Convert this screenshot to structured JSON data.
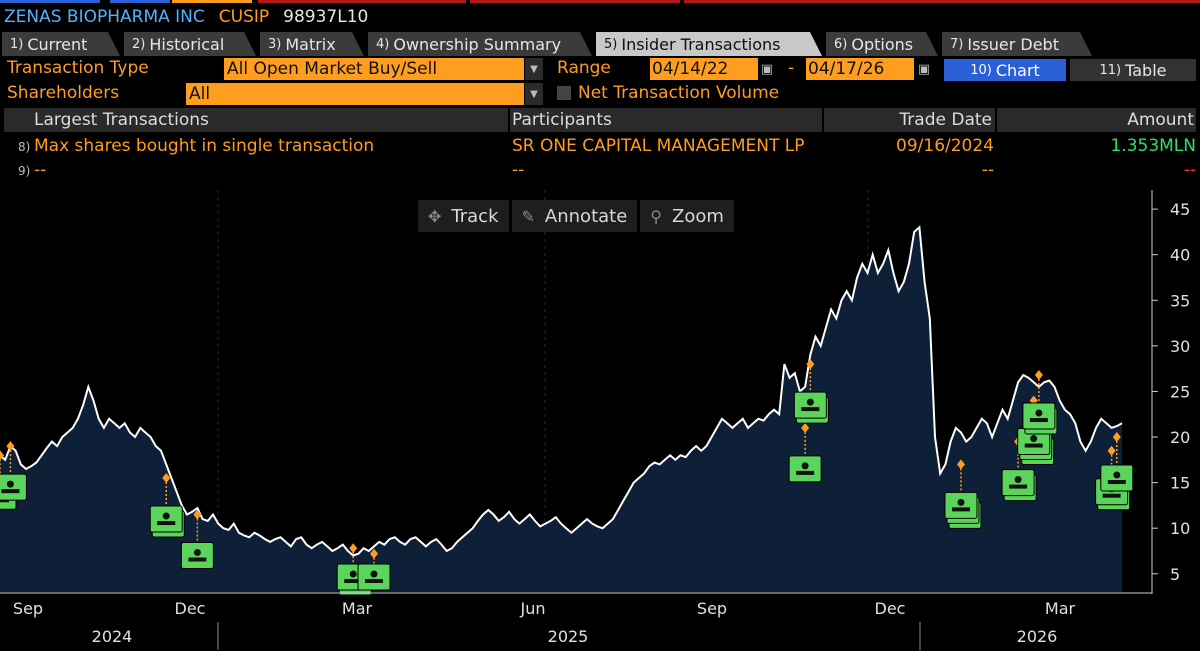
{
  "header": {
    "company": "ZENAS BIOPHARMA INC",
    "cusip_label": "CUSIP",
    "cusip_value": "98937L10"
  },
  "tabs": [
    {
      "num": "1)",
      "label": "Current"
    },
    {
      "num": "2)",
      "label": "Historical"
    },
    {
      "num": "3)",
      "label": "Matrix"
    },
    {
      "num": "4)",
      "label": "Ownership Summary"
    },
    {
      "num": "5)",
      "label": "Insider Transactions"
    },
    {
      "num": "6)",
      "label": "Options"
    },
    {
      "num": "7)",
      "label": "Issuer Debt"
    }
  ],
  "filters": {
    "transaction_type_label": "Transaction Type",
    "transaction_type_value": "All Open Market Buy/Sell",
    "range_label": "Range",
    "range_start": "04/14/22",
    "range_dash": "-",
    "range_end": "04/17/26",
    "shareholders_label": "Shareholders",
    "shareholders_value": "All",
    "net_volume_label": "Net Transaction Volume",
    "chart_btn_num": "10)",
    "chart_btn": "Chart",
    "table_btn_num": "11)",
    "table_btn": "Table"
  },
  "table": {
    "headers": {
      "largest": "Largest Transactions",
      "participants": "Participants",
      "trade_date": "Trade Date",
      "amount": "Amount"
    },
    "rows": [
      {
        "num": "8)",
        "desc": "Max shares bought in single transaction",
        "participant": "SR ONE CAPITAL MANAGEMENT LP",
        "date": "09/16/2024",
        "amount": "1.353MLN"
      },
      {
        "num": "9)",
        "desc": "--",
        "participant": "--",
        "date": "--",
        "amount": "--"
      }
    ]
  },
  "chart_tools": {
    "track": "Track",
    "annotate": "Annotate",
    "zoom": "Zoom"
  },
  "colors": {
    "accent": "#ff9d1e",
    "link": "#4fb3ff",
    "marker": "#5bd45b",
    "buy": "#2de06a",
    "area": "#0d2038"
  },
  "chart_data": {
    "type": "area",
    "title": "",
    "ylim": [
      3,
      46
    ],
    "yticks": [
      5,
      10,
      15,
      20,
      25,
      30,
      35,
      40,
      45
    ],
    "x_month_labels": [
      "Sep",
      "Dec",
      "Mar",
      "Jun",
      "Sep",
      "Dec",
      "Mar"
    ],
    "x_year_labels": [
      "2024",
      "2025",
      "2026"
    ],
    "prices": [
      18.0,
      17.5,
      19.0,
      18.5,
      17.0,
      16.5,
      16.8,
      17.2,
      18.0,
      18.8,
      19.5,
      19.0,
      20.0,
      20.5,
      21.0,
      22.0,
      23.5,
      25.5,
      24.0,
      22.0,
      21.0,
      22.0,
      21.5,
      21.0,
      21.5,
      20.5,
      20.0,
      21.0,
      20.5,
      20.0,
      19.0,
      18.5,
      17.0,
      15.5,
      14.0,
      12.5,
      11.5,
      11.8,
      12.2,
      11.0,
      10.8,
      11.5,
      10.5,
      10.0,
      9.8,
      10.5,
      9.5,
      9.2,
      9.0,
      9.5,
      9.2,
      8.8,
      8.5,
      8.8,
      9.0,
      8.5,
      8.0,
      8.8,
      9.0,
      8.2,
      7.8,
      8.2,
      8.5,
      8.0,
      7.5,
      7.8,
      8.2,
      7.5,
      7.0,
      7.2,
      7.8,
      7.5,
      8.0,
      8.5,
      8.2,
      8.8,
      9.0,
      8.5,
      8.2,
      8.8,
      9.0,
      8.5,
      8.0,
      8.5,
      8.8,
      8.2,
      7.5,
      7.8,
      8.5,
      9.0,
      9.5,
      10.0,
      10.8,
      11.5,
      12.0,
      11.5,
      10.8,
      11.2,
      11.8,
      11.0,
      10.5,
      11.0,
      11.5,
      10.8,
      10.2,
      10.5,
      10.8,
      11.2,
      10.5,
      10.0,
      9.5,
      10.0,
      10.5,
      11.0,
      10.5,
      10.2,
      10.0,
      10.5,
      11.0,
      12.0,
      13.0,
      14.0,
      15.0,
      15.5,
      16.0,
      16.8,
      17.2,
      17.0,
      17.5,
      18.0,
      17.5,
      18.0,
      17.8,
      18.5,
      19.0,
      18.5,
      19.0,
      20.0,
      21.0,
      22.0,
      21.5,
      21.0,
      21.5,
      22.0,
      21.0,
      21.5,
      22.0,
      21.8,
      22.5,
      23.0,
      22.5,
      28.0,
      26.5,
      27.0,
      25.0,
      25.5,
      29.0,
      31.0,
      30.0,
      32.0,
      34.0,
      33.0,
      35.0,
      36.0,
      35.0,
      37.5,
      39.0,
      38.0,
      40.0,
      38.0,
      39.0,
      40.5,
      38.0,
      36.0,
      37.0,
      39.0,
      42.5,
      43.0,
      37.0,
      33.0,
      20.0,
      16.0,
      17.0,
      19.5,
      21.0,
      20.5,
      19.5,
      20.0,
      21.0,
      22.0,
      21.5,
      20.0,
      21.5,
      23.0,
      22.0,
      24.0,
      26.0,
      26.8,
      26.5,
      26.0,
      25.5,
      26.0,
      26.2,
      25.5,
      24.0,
      23.0,
      22.5,
      21.5,
      19.5,
      18.5,
      19.5,
      21.0,
      22.0,
      21.5,
      21.0,
      21.2,
      21.5
    ],
    "transactions": [
      {
        "index": 0,
        "price": 18.0,
        "cluster": 1
      },
      {
        "index": 2,
        "price": 19.0,
        "cluster": 1
      },
      {
        "index": 32,
        "price": 15.5,
        "cluster": 2
      },
      {
        "index": 38,
        "price": 11.5,
        "cluster": 1
      },
      {
        "index": 68,
        "price": 7.8,
        "cluster": 2
      },
      {
        "index": 72,
        "price": 7.2,
        "cluster": 1
      },
      {
        "index": 155,
        "price": 21.0,
        "cluster": 1
      },
      {
        "index": 156,
        "price": 28.0,
        "cluster": 2
      },
      {
        "index": 185,
        "price": 17.0,
        "cluster": 3
      },
      {
        "index": 196,
        "price": 19.5,
        "cluster": 2
      },
      {
        "index": 199,
        "price": 24.0,
        "cluster": 3
      },
      {
        "index": 200,
        "price": 26.8,
        "cluster": 2
      },
      {
        "index": 214,
        "price": 18.5,
        "cluster": 2
      },
      {
        "index": 215,
        "price": 20.0,
        "cluster": 1
      }
    ]
  }
}
